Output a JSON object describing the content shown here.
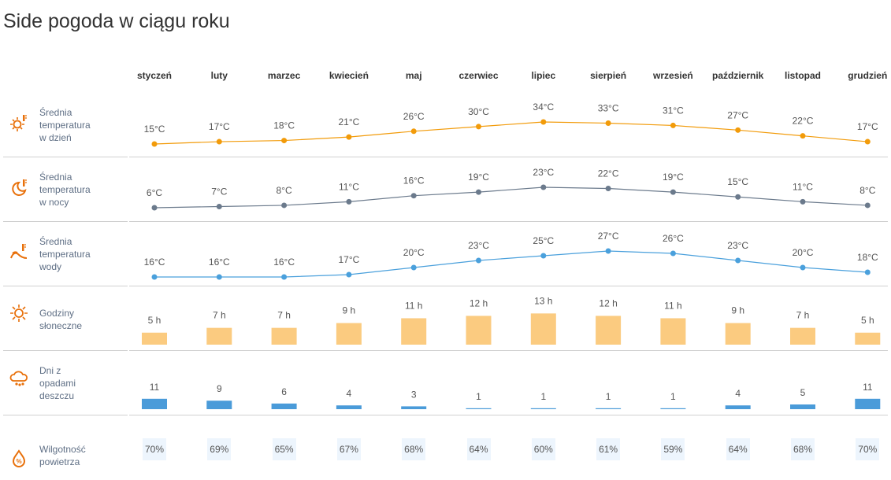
{
  "title": "Side pogoda w ciągu roku",
  "months": [
    "styczeń",
    "luty",
    "marzec",
    "kwiecień",
    "maj",
    "czerwiec",
    "lipiec",
    "sierpień",
    "wrzesień",
    "październik",
    "listopad",
    "grudzień"
  ],
  "colors": {
    "icon": "#e8700a",
    "day_line": "#f29b0a",
    "night_line": "#6b7a8c",
    "water_line": "#4aa0dc",
    "sun_bar": "#fbcb80",
    "rain_bar": "#4a9bd9",
    "humidity_bg": "#edf5fd"
  },
  "rows": [
    {
      "id": "day",
      "icon": "sun-thermometer-icon",
      "label": [
        "Średnia",
        "temperatura",
        "w dzień"
      ],
      "values": [
        15,
        17,
        18,
        21,
        26,
        30,
        34,
        33,
        31,
        27,
        22,
        17
      ],
      "unit": "°C"
    },
    {
      "id": "night",
      "icon": "moon-thermometer-icon",
      "label": [
        "Średnia",
        "temperatura",
        "w nocy"
      ],
      "values": [
        6,
        7,
        8,
        11,
        16,
        19,
        23,
        22,
        19,
        15,
        11,
        8
      ],
      "unit": "°C"
    },
    {
      "id": "water",
      "icon": "wave-thermometer-icon",
      "label": [
        "Średnia",
        "temperatura",
        "wody"
      ],
      "values": [
        16,
        16,
        16,
        17,
        20,
        23,
        25,
        27,
        26,
        23,
        20,
        18
      ],
      "unit": "°C"
    },
    {
      "id": "sun",
      "icon": "sun-icon",
      "label": [
        "Godziny",
        "słoneczne"
      ],
      "values": [
        5,
        7,
        7,
        9,
        11,
        12,
        13,
        12,
        11,
        9,
        7,
        5
      ],
      "unit": " h"
    },
    {
      "id": "rain",
      "icon": "rain-cloud-icon",
      "label": [
        "Dni z",
        "opadami",
        "deszczu"
      ],
      "values": [
        11,
        9,
        6,
        4,
        3,
        1,
        1,
        1,
        1,
        4,
        5,
        11
      ],
      "unit": ""
    },
    {
      "id": "humidity",
      "icon": "humidity-drop-icon",
      "label": [
        "Wilgotność",
        "powietrza"
      ],
      "values": [
        70,
        69,
        65,
        67,
        68,
        64,
        60,
        61,
        59,
        64,
        68,
        70
      ],
      "unit": "%"
    }
  ]
}
